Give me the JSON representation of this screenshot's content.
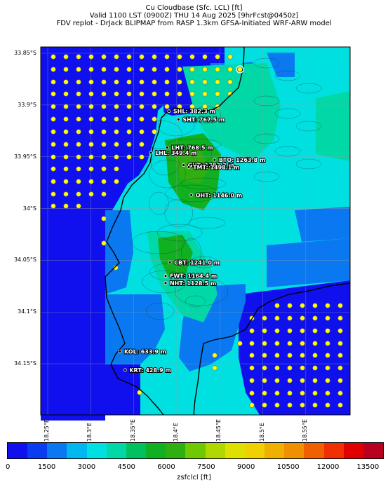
{
  "title": {
    "line1": "Cu Cloudbase (Sfc. LCL) [ft]",
    "line2": "Valid 1100 LST (0900Z) THU 14 Aug 2025 [9hrFcst@0450z]",
    "line3": "FDV replot - DrJack BLIPMAP from RASP 1.3km GFSA-Initiated WRF-ARW model"
  },
  "y_ticks": [
    "33.85°S",
    "33.9°S",
    "33.95°S",
    "34°S",
    "34.05°S",
    "34.1°S",
    "34.15°S"
  ],
  "x_ticks": [
    "18.25°E",
    "18.3°E",
    "18.35°E",
    "18.4°E",
    "18.45°E",
    "18.5°E",
    "18.55°E"
  ],
  "stations": [
    {
      "label": "SHL: 382.3 m",
      "lon": 18.391,
      "lat": -33.906
    },
    {
      "label": "SHT: 767.5 m",
      "lon": 18.402,
      "lat": -33.914
    },
    {
      "label": "LHT: 768.5 m",
      "lon": 18.389,
      "lat": -33.941
    },
    {
      "label": "LHL: 349.4 m",
      "lon": 18.37,
      "lat": -33.946
    },
    {
      "label": "BTO: 1263.8 m",
      "lon": 18.444,
      "lat": -33.953
    },
    {
      "label": "GUT: 1383.3 m",
      "lon": 18.408,
      "lat": -33.958
    },
    {
      "label": "TMT: 1498.1 m",
      "lon": 18.414,
      "lat": -33.96
    },
    {
      "label": "OHT: 1146.0 m",
      "lon": 18.417,
      "lat": -33.987
    },
    {
      "label": "CBT: 1241.0 m",
      "lon": 18.392,
      "lat": -34.052
    },
    {
      "label": "FWT: 1164.4 m",
      "lon": 18.387,
      "lat": -34.065
    },
    {
      "label": "NHT: 1128.5 m",
      "lon": 18.387,
      "lat": -34.072
    },
    {
      "label": "KOL: 633.9 m",
      "lon": 18.334,
      "lat": -34.138
    },
    {
      "label": "KRT: 428.9 m",
      "lon": 18.34,
      "lat": -34.156
    }
  ],
  "colorbar": {
    "label": "zsfclcl [ft]",
    "ticks": [
      "0",
      "1500",
      "3000",
      "4500",
      "6000",
      "7500",
      "9000",
      "10500",
      "12000",
      "13500"
    ],
    "colors": [
      "#1010ee",
      "#0a3cf0",
      "#0a78f0",
      "#00b8f0",
      "#00e0e0",
      "#00d8a8",
      "#00c060",
      "#10b020",
      "#30b010",
      "#70c800",
      "#b0d800",
      "#e0e000",
      "#f0d000",
      "#f0b000",
      "#f09000",
      "#f06000",
      "#f03000",
      "#e00000",
      "#b80020"
    ]
  },
  "fill_colors": {
    "deep": "#1010ee",
    "blue": "#0a78f0",
    "cyan": "#00e0e0",
    "teal": "#00d8a8",
    "green": "#10b020",
    "lime": "#30b010",
    "dot": "#ffff00"
  }
}
